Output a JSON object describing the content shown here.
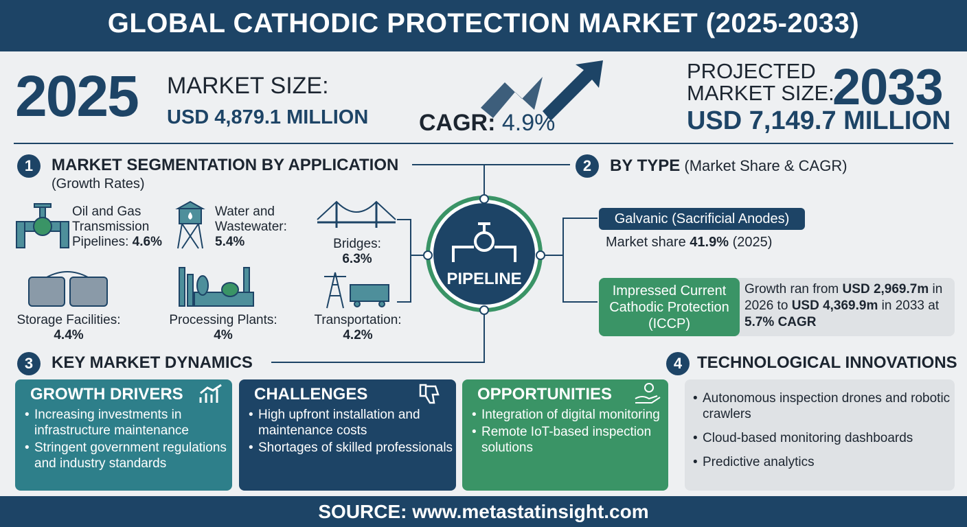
{
  "header": {
    "title": "GLOBAL CATHODIC PROTECTION MARKET (2025-2033)"
  },
  "summary": {
    "year_start": "2025",
    "size_label": "MARKET SIZE:",
    "size_value": "USD 4,879.1 MILLION",
    "cagr_label": "CAGR:",
    "cagr_value": "4.9%",
    "projected_label": "PROJECTED MARKET SIZE:",
    "year_end": "2033",
    "projected_value": "USD 7,149.7 MILLION"
  },
  "section1": {
    "number": "1",
    "title": "MARKET SEGMENTATION BY APPLICATION",
    "subtitle": "(Growth Rates)",
    "items": [
      {
        "label": "Oil and Gas Transmission Pipelines:",
        "rate": "4.6%"
      },
      {
        "label": "Water and Wastewater:",
        "rate": "5.4%"
      },
      {
        "label": "Bridges:",
        "rate": "6.3%"
      },
      {
        "label": "Storage Facilities:",
        "rate": "4.4%"
      },
      {
        "label": "Processing Plants:",
        "rate": "4%"
      },
      {
        "label": "Transportation:",
        "rate": "4.2%"
      }
    ]
  },
  "hub": {
    "label": "PIPELINE"
  },
  "section2": {
    "number": "2",
    "title": "BY TYPE",
    "subtitle": "(Market Share & CAGR)",
    "galvanic": {
      "name": "Galvanic (Sacrificial Anodes)",
      "share_label": "Market share",
      "share": "41.9%",
      "share_year": "(2025)"
    },
    "iccp": {
      "name": "Impressed Current Cathodic Protection (ICCP)",
      "text1": "Growth ran from",
      "value1": "USD 2,969.7m",
      "text2": "in 2026 to",
      "value2": "USD 4,369.9m",
      "text3": "in 2033 at",
      "cagr": "5.7% CAGR"
    }
  },
  "section3": {
    "number": "3",
    "title": "KEY MARKET DYNAMICS",
    "cards": [
      {
        "title": "GROWTH DRIVERS",
        "items": [
          "Increasing investments in infrastructure maintenance",
          "Stringent government regulations and industry standards"
        ]
      },
      {
        "title": "CHALLENGES",
        "items": [
          "High upfront installation and maintenance costs",
          "Shortages of skilled professionals"
        ]
      },
      {
        "title": "OPPORTUNITIES",
        "items": [
          "Integration of digital monitoring",
          "Remote IoT-based inspection solutions"
        ]
      }
    ]
  },
  "section4": {
    "number": "4",
    "title": "TECHNOLOGICAL INNOVATIONS",
    "items": [
      "Autonomous inspection drones and robotic crawlers",
      "Cloud-based monitoring dashboards",
      "Predictive analytics"
    ]
  },
  "footer": {
    "source": "SOURCE: www.metastatinsight.com"
  }
}
